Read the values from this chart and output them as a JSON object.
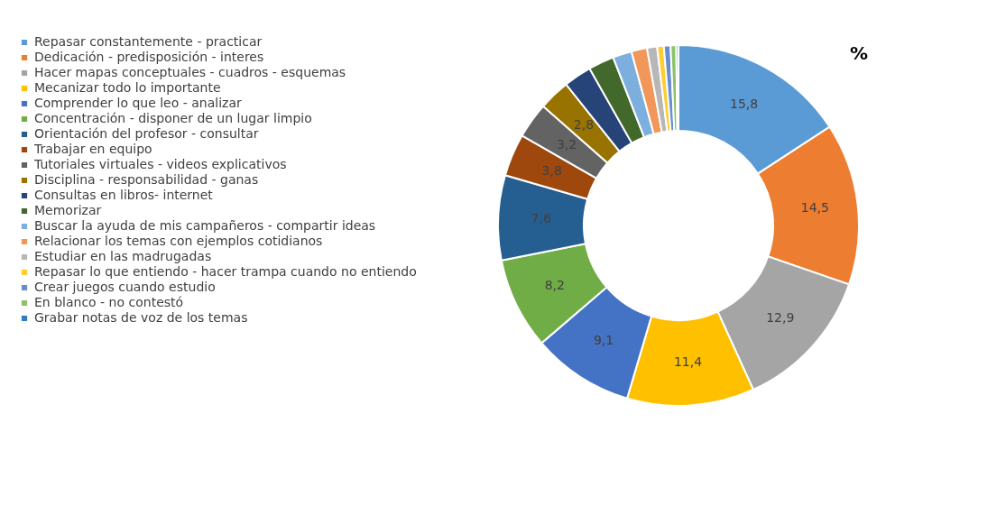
{
  "chart_data": {
    "type": "donut",
    "title": "%",
    "categories": [
      "Repasar constantemente - practicar",
      "Dedicación - predisposición - interes",
      "Hacer mapas conceptuales - cuadros - esquemas",
      "Mecanizar todo lo importante",
      "Comprender lo que leo - analizar",
      "Concentración - disponer de un lugar limpio",
      "Orientación del profesor - consultar",
      "Trabajar en equipo",
      "Tutoriales virtuales - videos explicativos",
      "Disciplina - responsabilidad - ganas",
      "Consultas en libros- internet",
      "Memorizar",
      "Buscar la ayuda de mis campañeros - compartir ideas",
      "Relacionar los temas con ejemplos cotidianos",
      "Estudiar en las madrugadas",
      "Repasar lo que entiendo - hacer trampa cuando no entiendo",
      "Crear juegos cuando estudio",
      "En blanco - no contestó",
      "Grabar notas de voz de los temas"
    ],
    "values": [
      15.8,
      14.5,
      12.9,
      11.4,
      9.1,
      8.2,
      7.6,
      3.8,
      3.2,
      2.8,
      2.5,
      2.3,
      1.7,
      1.4,
      0.9,
      0.6,
      0.6,
      0.5,
      0.2
    ],
    "value_labels": [
      "15,8",
      "14,5",
      "12,9",
      "11,4",
      "9,1",
      "8,2",
      "7,6",
      "3,8",
      "3,2",
      "2,8",
      null,
      null,
      null,
      null,
      null,
      null,
      null,
      null,
      null
    ],
    "colors": [
      "#5b9bd5",
      "#ed7d31",
      "#a5a5a5",
      "#ffc000",
      "#4472c4",
      "#70ad47",
      "#255e91",
      "#9e480e",
      "#636363",
      "#997300",
      "#264478",
      "#43682b",
      "#7cafdd",
      "#f1975a",
      "#b7b7b7",
      "#ffcd33",
      "#698ed0",
      "#8cc168",
      "#327dc2"
    ],
    "legend": "left"
  }
}
